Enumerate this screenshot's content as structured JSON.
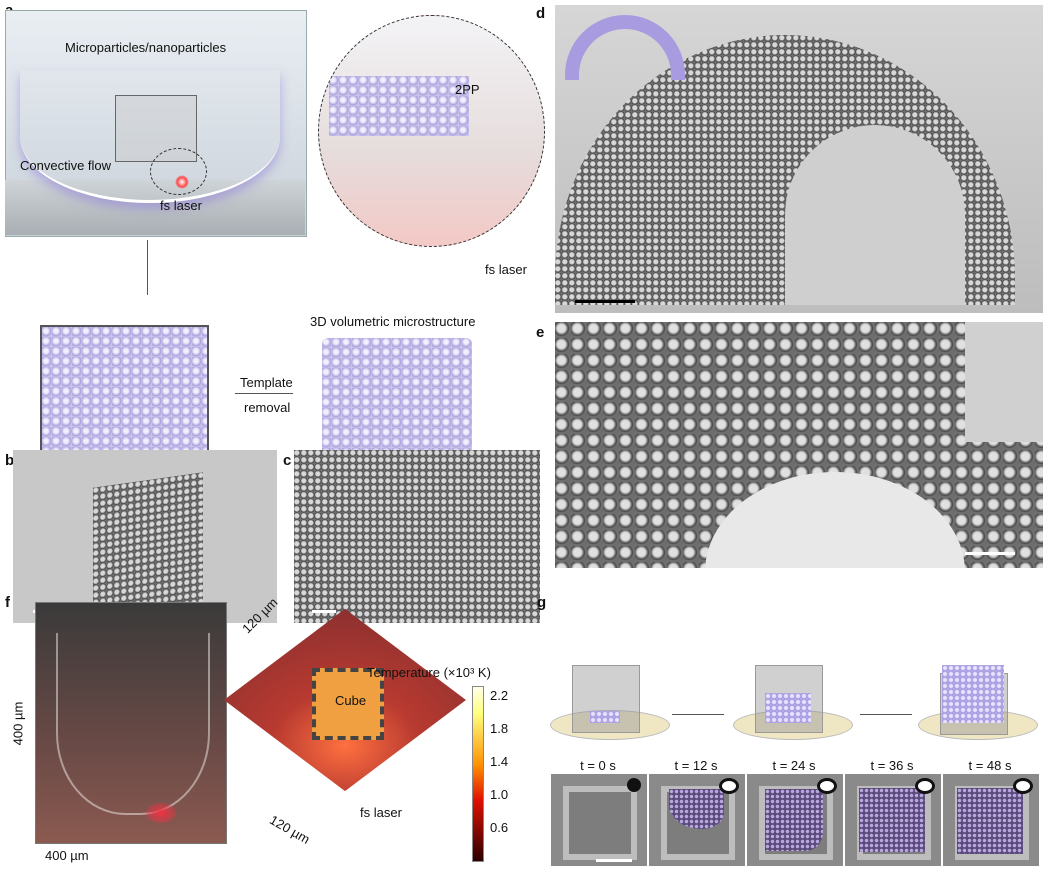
{
  "panels": {
    "a": {
      "label": "a",
      "microparticles": "Microparticles/nanoparticles",
      "convective": "Convective flow",
      "fs_laser_1": "fs laser",
      "twopp": "2PP",
      "fs_laser_2": "fs laser",
      "volumetric": "3D volumetric microstructure",
      "template": "Template",
      "removal": "removal"
    },
    "b": {
      "label": "b"
    },
    "c": {
      "label": "c"
    },
    "d": {
      "label": "d"
    },
    "e": {
      "label": "e"
    },
    "f": {
      "label": "f",
      "dim_400_v": "400 µm",
      "dim_400_h": "400 µm",
      "dim_120_a": "120 µm",
      "dim_120_b": "120 µm",
      "cube": "Cube",
      "fs_laser": "fs laser",
      "colorbar_title": "Temperature (×10³ K)",
      "colorbar_ticks": [
        "2.2",
        "1.8",
        "1.4",
        "1.0",
        "0.6"
      ],
      "colors": {
        "low": "#2a0000",
        "mid": "#e01000",
        "high": "#ffff80",
        "top": "#ffffe8"
      }
    },
    "g": {
      "label": "g",
      "times": [
        "t = 0 s",
        "t = 12 s",
        "t = 24 s",
        "t = 36 s",
        "t = 48 s"
      ]
    }
  },
  "colors": {
    "particle": "#b8aee8",
    "substrate": "#efe6c4"
  }
}
